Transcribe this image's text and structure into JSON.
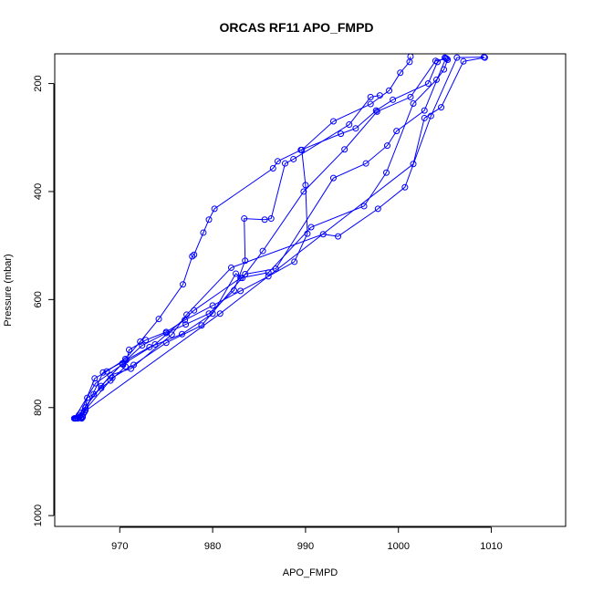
{
  "chart_data": {
    "type": "scatter",
    "title": "ORCAS RF11 APO_FMPD",
    "xlabel": "APO_FMPD",
    "ylabel": "Pressure (mbar)",
    "xlim": [
      963,
      1018
    ],
    "ylim": [
      1020,
      145
    ],
    "y_reversed": true,
    "grid": false,
    "legend": "none",
    "color": "#0000ff",
    "x_ticks": [
      970,
      980,
      990,
      1000,
      1010
    ],
    "y_ticks": [
      200,
      400,
      600,
      800,
      1000
    ],
    "x_tick_labels": [
      "970",
      "980",
      "990",
      "1000",
      "1010"
    ],
    "y_tick_labels": [
      "200",
      "400",
      "600",
      "800",
      "1000"
    ],
    "series": [
      {
        "x": [
          965.2,
          965.5,
          965.8,
          966.0,
          966.0,
          965.6,
          966.1,
          966.2,
          966.3,
          966.3,
          966.5,
          967.2,
          968.0,
          969.0,
          970.6,
          971.0,
          972.8,
          975.0,
          977.0,
          980.0,
          983.0,
          986.0,
          988.8,
          990.2,
          990.0,
          989.6,
          993.0,
          997.0,
          999.0,
          1000.2,
          1001.2,
          1001.3
        ],
        "y": [
          820,
          820,
          819,
          818,
          816,
          814,
          811,
          808,
          805,
          800,
          782,
          775,
          764,
          750,
          724,
          693,
          675,
          660,
          638,
          611,
          584,
          557,
          530,
          478,
          388,
          323,
          270,
          238,
          213,
          180,
          160,
          150
        ]
      },
      {
        "x": [
          965.8,
          967.3,
          968.6,
          970.6,
          972.2,
          974.2,
          976.8,
          977.8,
          978.0,
          979.0,
          979.6,
          980.2,
          986.5,
          987.0,
          989.5,
          993.8,
          995.4,
          997.6,
          999.4,
          1003.2,
          1004.2,
          1005.0
        ],
        "y": [
          810,
          746,
          733,
          710,
          678,
          636,
          572,
          520,
          517,
          476,
          452,
          432,
          357,
          344,
          323,
          293,
          283,
          250,
          230,
          200,
          160,
          152
        ]
      },
      {
        "x": [
          965.4,
          968.0,
          970.3,
          972.4,
          975.0,
          977.1,
          979.6,
          982.3,
          983.5,
          983.4,
          985.6,
          986.3,
          987.8,
          988.7,
          994.7,
          997.0,
          998.0
        ],
        "y": [
          819,
          760,
          718,
          685,
          662,
          646,
          626,
          583,
          528,
          450,
          452,
          450,
          348,
          340,
          276,
          225,
          222
        ]
      },
      {
        "x": [
          965.9,
          968.2,
          970.7,
          973.2,
          976.7,
          980.0,
          982.5,
          983.2,
          985.4,
          989.8,
          994.2,
          997.7,
          1001.3,
          1004.0,
          1005.2
        ],
        "y": [
          820,
          735,
          712,
          688,
          664,
          626,
          552,
          560,
          510,
          400,
          322,
          252,
          225,
          158,
          154
        ]
      },
      {
        "x": [
          965.6,
          969.2,
          971.5,
          975.0,
          978.8,
          983.5,
          986.8,
          993.0,
          996.5,
          998.8,
          999.8,
          1002.8,
          1005.1
        ],
        "y": [
          818,
          745,
          721,
          680,
          648,
          553,
          543,
          375,
          348,
          315,
          288,
          250,
          153
        ]
      },
      {
        "x": [
          965.1,
          967.4,
          970.3,
          973.8,
          978.0,
          983.0,
          986.0,
          990.6,
          996.3,
          998.7,
          1001.6,
          1004.1,
          1004.9,
          1005.3
        ],
        "y": [
          820,
          755,
          720,
          683,
          620,
          560,
          550,
          466,
          427,
          365,
          237,
          193,
          174,
          156
        ]
      },
      {
        "x": [
          965.3,
          969.0,
          971.2,
          975.6,
          977.2,
          982.0,
          991.9,
          993.5,
          997.8,
          1000.7,
          1003.5,
          1006.3,
          1009.2
        ],
        "y": [
          820,
          740,
          728,
          665,
          628,
          541,
          479,
          483,
          432,
          392,
          260,
          152,
          151
        ]
      },
      {
        "x": [
          965.2,
          980.8,
          1001.6,
          1002.8,
          1004.6,
          1007.0,
          1009.3
        ],
        "y": [
          820,
          626,
          349,
          264,
          244,
          159,
          152
        ]
      }
    ]
  }
}
